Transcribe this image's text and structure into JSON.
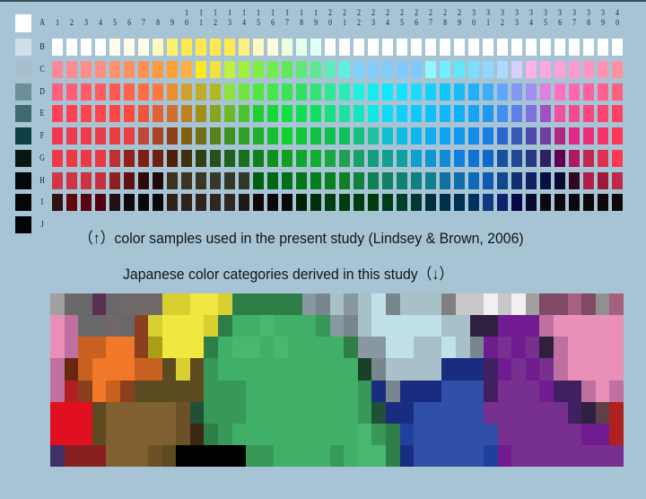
{
  "background_color": "#a7c4d5",
  "row_labels": [
    "A",
    "B",
    "C",
    "D",
    "E",
    "F",
    "G",
    "H",
    "I",
    "J"
  ],
  "column_labels": [
    "1",
    "2",
    "3",
    "4",
    "5",
    "6",
    "7",
    "8",
    "9",
    "10",
    "11",
    "12",
    "13",
    "14",
    "15",
    "16",
    "17",
    "18",
    "19",
    "20",
    "21",
    "22",
    "23",
    "24",
    "25",
    "26",
    "27",
    "28",
    "29",
    "30",
    "31",
    "32",
    "33",
    "34",
    "35",
    "36",
    "37",
    "38",
    "39",
    "40"
  ],
  "achromatic_colors": [
    "#ffffff",
    "#d0e0ea",
    "#a8c0cc",
    "#6a9098",
    "#3e6a70",
    "#104040",
    "#081810",
    "#040808",
    "#040608",
    "#040408"
  ],
  "chromatic_rows": {
    "B": [
      [
        1,
        "#ffffff"
      ],
      [
        4,
        "#ffffff"
      ],
      [
        5,
        "#fffde8"
      ],
      [
        7,
        "#fffde8"
      ],
      [
        8,
        "#fff8c0"
      ],
      [
        9,
        "#fff070"
      ],
      [
        10,
        "#ffe850"
      ],
      [
        13,
        "#ffe850"
      ],
      [
        14,
        "#fff080"
      ],
      [
        15,
        "#fff8c0"
      ],
      [
        16,
        "#fffce0"
      ],
      [
        17,
        "#f0ffe0"
      ],
      [
        18,
        "#e8fff0"
      ],
      [
        19,
        "#e0fff8"
      ],
      [
        20,
        "#ffffff"
      ],
      [
        40,
        "#ffffff"
      ]
    ],
    "C": [
      [
        1,
        "#ff8898"
      ],
      [
        4,
        "#ff9080"
      ],
      [
        7,
        "#ff9050"
      ],
      [
        9,
        "#ffa030"
      ],
      [
        10,
        "#ffb040"
      ],
      [
        11,
        "#ffe820"
      ],
      [
        12,
        "#f0e040"
      ],
      [
        13,
        "#c0f040"
      ],
      [
        15,
        "#80f040"
      ],
      [
        17,
        "#60e858"
      ],
      [
        19,
        "#60e890"
      ],
      [
        21,
        "#60f0e0"
      ],
      [
        22,
        "#80d0ff"
      ],
      [
        26,
        "#80c8ff"
      ],
      [
        27,
        "#90f8ff"
      ],
      [
        28,
        "#70f0ff"
      ],
      [
        29,
        "#60e8f8"
      ],
      [
        31,
        "#90d8ff"
      ],
      [
        32,
        "#b0d8ff"
      ],
      [
        33,
        "#d8d0ff"
      ],
      [
        34,
        "#ffb0e8"
      ],
      [
        35,
        "#ffa8e0"
      ],
      [
        37,
        "#ff98d0"
      ],
      [
        40,
        "#ff90a0"
      ]
    ],
    "D": [
      [
        1,
        "#ff6080"
      ],
      [
        5,
        "#ff5850"
      ],
      [
        8,
        "#ff7840"
      ],
      [
        9,
        "#e89030"
      ],
      [
        10,
        "#d0a030"
      ],
      [
        12,
        "#b0b828"
      ],
      [
        13,
        "#90e040"
      ],
      [
        15,
        "#50e840"
      ],
      [
        18,
        "#30e060"
      ],
      [
        20,
        "#30e890"
      ],
      [
        22,
        "#20f0e0"
      ],
      [
        24,
        "#10e8ff"
      ],
      [
        26,
        "#20d8ff"
      ],
      [
        28,
        "#10c8f8"
      ],
      [
        30,
        "#20b0f8"
      ],
      [
        32,
        "#60a8ff"
      ],
      [
        33,
        "#8098f0"
      ],
      [
        34,
        "#a090f0"
      ],
      [
        35,
        "#e080e0"
      ],
      [
        36,
        "#ff70c0"
      ],
      [
        38,
        "#ff60a0"
      ],
      [
        40,
        "#ff6080"
      ]
    ],
    "E": [
      [
        1,
        "#ff4058"
      ],
      [
        6,
        "#ff4840"
      ],
      [
        9,
        "#d07030"
      ],
      [
        10,
        "#c08020"
      ],
      [
        11,
        "#a09018"
      ],
      [
        13,
        "#70b828"
      ],
      [
        15,
        "#20d030"
      ],
      [
        17,
        "#10e040"
      ],
      [
        19,
        "#10e060"
      ],
      [
        21,
        "#20e0a0"
      ],
      [
        23,
        "#10e8e0"
      ],
      [
        24,
        "#10d8f8"
      ],
      [
        26,
        "#10c8ff"
      ],
      [
        29,
        "#10b0f8"
      ],
      [
        31,
        "#2098f0"
      ],
      [
        32,
        "#4090f0"
      ],
      [
        33,
        "#6080e8"
      ],
      [
        34,
        "#8070e0"
      ],
      [
        35,
        "#a050c0"
      ],
      [
        36,
        "#f050a0"
      ],
      [
        40,
        "#ff4060"
      ]
    ],
    "F": [
      [
        1,
        "#f03850"
      ],
      [
        6,
        "#e84040"
      ],
      [
        7,
        "#c04838"
      ],
      [
        9,
        "#904018"
      ],
      [
        10,
        "#806010"
      ],
      [
        11,
        "#707018"
      ],
      [
        13,
        "#409020"
      ],
      [
        15,
        "#20b030"
      ],
      [
        17,
        "#10d030"
      ],
      [
        19,
        "#10c040"
      ],
      [
        21,
        "#10c060"
      ],
      [
        23,
        "#20c0a0"
      ],
      [
        24,
        "#10c0d0"
      ],
      [
        26,
        "#10b8f0"
      ],
      [
        29,
        "#1098f0"
      ],
      [
        31,
        "#1880e0"
      ],
      [
        32,
        "#2868d0"
      ],
      [
        33,
        "#3858b8"
      ],
      [
        34,
        "#5048a8"
      ],
      [
        35,
        "#7040a0"
      ],
      [
        36,
        "#b02880"
      ],
      [
        37,
        "#e02888"
      ],
      [
        40,
        "#ff3858"
      ]
    ],
    "G": [
      [
        1,
        "#f03848"
      ],
      [
        4,
        "#e83840"
      ],
      [
        5,
        "#c03030"
      ],
      [
        6,
        "#902018"
      ],
      [
        8,
        "#702010"
      ],
      [
        9,
        "#502008"
      ],
      [
        10,
        "#403010"
      ],
      [
        11,
        "#304010"
      ],
      [
        13,
        "#206020"
      ],
      [
        15,
        "#10801a"
      ],
      [
        17,
        "#10a020"
      ],
      [
        19,
        "#10b030"
      ],
      [
        21,
        "#20a050"
      ],
      [
        23,
        "#10a080"
      ],
      [
        25,
        "#10a0a0"
      ],
      [
        26,
        "#10a0d0"
      ],
      [
        29,
        "#1080e0"
      ],
      [
        31,
        "#1068c8"
      ],
      [
        32,
        "#1850a0"
      ],
      [
        33,
        "#204890"
      ],
      [
        34,
        "#283880"
      ],
      [
        35,
        "#302060"
      ],
      [
        36,
        "#600050"
      ],
      [
        37,
        "#b01860"
      ],
      [
        38,
        "#c02850"
      ],
      [
        40,
        "#ff3850"
      ]
    ],
    "H": [
      [
        1,
        "#d03848"
      ],
      [
        4,
        "#c83040"
      ],
      [
        5,
        "#902020"
      ],
      [
        6,
        "#601010"
      ],
      [
        7,
        "#300808"
      ],
      [
        8,
        "#200808"
      ],
      [
        9,
        "#403020"
      ],
      [
        12,
        "#383828"
      ],
      [
        14,
        "#303828"
      ],
      [
        15,
        "#006010"
      ],
      [
        17,
        "#007018"
      ],
      [
        19,
        "#008018"
      ],
      [
        21,
        "#108028"
      ],
      [
        23,
        "#108050"
      ],
      [
        25,
        "#108070"
      ],
      [
        27,
        "#108090"
      ],
      [
        28,
        "#1070a0"
      ],
      [
        30,
        "#1068b8"
      ],
      [
        31,
        "#1058b0"
      ],
      [
        32,
        "#104890"
      ],
      [
        33,
        "#103070"
      ],
      [
        34,
        "#102060"
      ],
      [
        35,
        "#081040"
      ],
      [
        36,
        "#080830"
      ],
      [
        37,
        "#300820"
      ],
      [
        38,
        "#b02048"
      ],
      [
        39,
        "#a01838"
      ],
      [
        40,
        "#c02848"
      ]
    ],
    "I": [
      [
        1,
        "#301010"
      ],
      [
        2,
        "#600810"
      ],
      [
        4,
        "#500010"
      ],
      [
        5,
        "#201010"
      ],
      [
        6,
        "#100810"
      ],
      [
        7,
        "#080808"
      ],
      [
        8,
        "#080808"
      ],
      [
        9,
        "#302018"
      ],
      [
        13,
        "#302820"
      ],
      [
        15,
        "#100808"
      ],
      [
        17,
        "#080808"
      ],
      [
        18,
        "#002008"
      ],
      [
        20,
        "#004010"
      ],
      [
        23,
        "#003a0e"
      ],
      [
        25,
        "#004028"
      ],
      [
        27,
        "#003040"
      ],
      [
        28,
        "#003048"
      ],
      [
        30,
        "#003060"
      ],
      [
        31,
        "#103880"
      ],
      [
        32,
        "#102070"
      ],
      [
        33,
        "#080848"
      ],
      [
        34,
        "#080830"
      ],
      [
        35,
        "#080810"
      ],
      [
        40,
        "#100808"
      ]
    ]
  },
  "captions": {
    "top": "（↑）color samples used in the present study (Lindsey & Brown, 2006)",
    "bottom": "Japanese color categories derived in this study（↓）"
  },
  "category_palette": {
    "a": "#a0a0a0",
    "g": "#686868",
    "h": "#706868",
    "q": "#5a3050",
    "Y": "#f0e840",
    "y": "#d8d030",
    "o": "#a8a018",
    "G": "#2e7e48",
    "m": "#40b068",
    "n": "#389858",
    "L": "#48b870",
    "d": "#1a4028",
    "s": "#8898a0",
    "t": "#78868e",
    "c": "#a8c0c8",
    "C": "#c0e0ea",
    "P": "#e890b8",
    "p": "#c070a0",
    "u": "#701c90",
    "U": "#783090",
    "k": "#302040",
    "B": "#1a2c80",
    "b": "#3050a8",
    "A": "#2040a0",
    "O": "#f07828",
    "r": "#c86020",
    "R": "#e01020",
    "D": "#882020",
    "w": "#806030",
    "x": "#5c4a20",
    "z": "#8a4020",
    "Z": "#682810",
    "K": "#000000",
    "W": "#f0f0f0",
    "l": "#c8c8c8",
    "M": "#804a66",
    "N": "#a86080",
    "e": "#909090",
    "f": "#808080",
    "I": "#403068",
    "X": "#b02020",
    "v": "#6c5028",
    "j": "#3a2810",
    "i": "#402060",
    "E": "#205038",
    "V": "#604048"
  },
  "category_grid": [
    "aggqghhhyyYYyGGGGGstcscCtcccfllWlWaMMNMeN",
    "PpgghgzyYYYyGmmLmmmnstcCCCCCcckkuuupPPPPP",
    "PprrOOzoYYYGmLLmLmmmmGssCCccCctuUuUkpPPPP",
    "pZrOOOrrxyxnmmmmmmmmmmdtccccBBBiuUuUpPPPP",
    "pXzOrzxxxxxnnnmmmmmmmmnBtBBBbbbiUUUuiipPp",
    "RRRxwwwwwvEnnnmmmmmmmmnEBBbbbbbUUUUUUikVX",
    "RRRxwwwwwvjGnmmmmmmmmmLnGAbbbbbbUUUUUUuuX",
    "IDDDwwwvxKKKKKnnmmmmnmLLGBbbbbbAuUUUUUUUU"
  ]
}
